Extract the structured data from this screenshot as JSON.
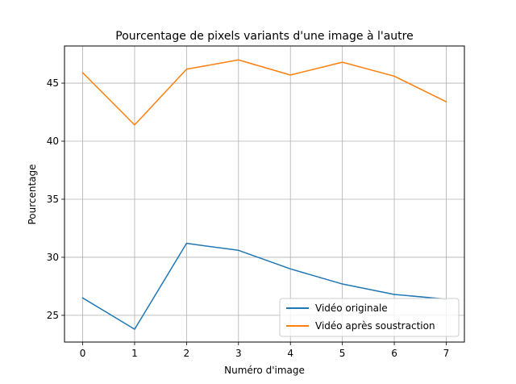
{
  "chart_data": {
    "type": "line",
    "title": "Pourcentage de pixels variants d'une image à l'autre",
    "xlabel": "Numéro d'image",
    "ylabel": "Pourcentage",
    "x": [
      0,
      1,
      2,
      3,
      4,
      5,
      6,
      7
    ],
    "xlim": [
      -0.35,
      7.35
    ],
    "ylim": [
      22.7,
      48.2
    ],
    "xticks": [
      0,
      1,
      2,
      3,
      4,
      5,
      6,
      7
    ],
    "yticks": [
      25,
      30,
      35,
      40,
      45
    ],
    "grid": true,
    "legend_position": "bottom-right",
    "series": [
      {
        "name": "Vidéo originale",
        "color": "#1f77b4",
        "values": [
          26.5,
          23.8,
          31.2,
          30.6,
          29.0,
          27.7,
          26.8,
          26.4
        ]
      },
      {
        "name": "Vidéo après soustraction",
        "color": "#ff7f0e",
        "values": [
          45.9,
          41.4,
          46.2,
          47.0,
          45.7,
          46.8,
          45.6,
          43.4
        ]
      }
    ]
  }
}
